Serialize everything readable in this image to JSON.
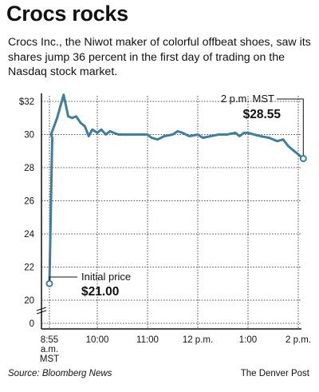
{
  "header": {
    "title": "Crocs rocks",
    "subtitle": "Crocs Inc., the Niwot maker of colorful offbeat shoes, saw its shares jump 36 percent in the first day of trading on the Nasdaq stock market."
  },
  "footer": {
    "source": "Source: Bloomberg News",
    "credit": "The Denver Post"
  },
  "colors": {
    "line": "#3f7e9c",
    "axis": "#111111",
    "grid": "#222222"
  },
  "chart_data": {
    "type": "line",
    "title": "",
    "xlabel": "",
    "ylabel": "",
    "ylim": [
      20,
      32.5
    ],
    "y_ticks": [
      {
        "value": 32,
        "label": "$32"
      },
      {
        "value": 30,
        "label": "30"
      },
      {
        "value": 28,
        "label": "28"
      },
      {
        "value": 26,
        "label": "26"
      },
      {
        "value": 24,
        "label": "24"
      },
      {
        "value": 22,
        "label": "22"
      },
      {
        "value": 20,
        "label": "20"
      }
    ],
    "broken_axis_zero_label": "0",
    "x_ticks": [
      {
        "hour": 8.917,
        "label": [
          "8:55",
          "a.m.",
          "MST"
        ]
      },
      {
        "hour": 10,
        "label": [
          "10:00"
        ]
      },
      {
        "hour": 11,
        "label": [
          "11:00"
        ]
      },
      {
        "hour": 12,
        "label": [
          "12 p.m."
        ]
      },
      {
        "hour": 13,
        "label": [
          "1:00"
        ]
      },
      {
        "hour": 14,
        "label": [
          "2 p.m."
        ]
      }
    ],
    "series": [
      {
        "points": [
          [
            8.917,
            21.0
          ],
          [
            8.98,
            29.8
          ],
          [
            9.08,
            30.0
          ],
          [
            9.2,
            31.0
          ],
          [
            9.33,
            32.4
          ],
          [
            9.42,
            31.1
          ],
          [
            9.5,
            31.0
          ],
          [
            9.58,
            31.1
          ],
          [
            9.67,
            30.7
          ],
          [
            9.75,
            30.5
          ],
          [
            9.83,
            29.9
          ],
          [
            9.9,
            30.3
          ],
          [
            10.0,
            30.1
          ],
          [
            10.08,
            30.3
          ],
          [
            10.17,
            30.0
          ],
          [
            10.25,
            30.2
          ],
          [
            10.33,
            30.1
          ],
          [
            10.42,
            30.0
          ],
          [
            10.58,
            30.0
          ],
          [
            10.75,
            30.0
          ],
          [
            10.9,
            30.0
          ],
          [
            11.0,
            30.0
          ],
          [
            11.08,
            29.8
          ],
          [
            11.2,
            29.7
          ],
          [
            11.33,
            29.9
          ],
          [
            11.5,
            30.0
          ],
          [
            11.6,
            30.2
          ],
          [
            11.7,
            30.1
          ],
          [
            11.83,
            29.9
          ],
          [
            12.0,
            30.0
          ],
          [
            12.1,
            29.8
          ],
          [
            12.25,
            29.9
          ],
          [
            12.42,
            30.0
          ],
          [
            12.58,
            30.0
          ],
          [
            12.75,
            30.1
          ],
          [
            12.83,
            29.9
          ],
          [
            12.92,
            30.1
          ],
          [
            13.0,
            30.1
          ],
          [
            13.12,
            30.0
          ],
          [
            13.25,
            29.9
          ],
          [
            13.42,
            29.8
          ],
          [
            13.58,
            29.6
          ],
          [
            13.7,
            29.7
          ],
          [
            13.8,
            29.3
          ],
          [
            13.92,
            29.0
          ],
          [
            14.0,
            28.8
          ],
          [
            14.1,
            28.55
          ]
        ]
      }
    ],
    "annotations": [
      {
        "label": "Initial price",
        "value": "$21.00"
      },
      {
        "label": "2 p.m. MST",
        "value": "$28.55"
      }
    ]
  }
}
